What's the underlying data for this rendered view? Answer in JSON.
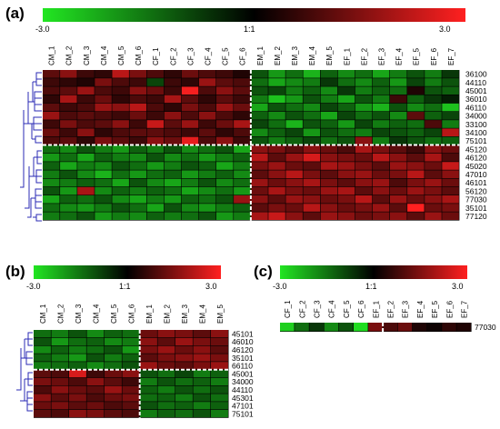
{
  "panels": [
    {
      "label": "(a)"
    },
    {
      "label": "(b)"
    },
    {
      "label": "(c)"
    }
  ],
  "color_scale": {
    "min_label": "-3.0",
    "mid_label": "1:1",
    "max_label": "3.0",
    "low_color": "#22e622",
    "mid_color": "#000000",
    "high_color": "#ff2020"
  },
  "chart_data": [
    {
      "type": "heatmap",
      "panel": "(a)",
      "value_range": [
        -3.0,
        3.0
      ],
      "columns": [
        "CM_1",
        "CM_2",
        "CM_3",
        "CM_4",
        "CM_5",
        "CM_6",
        "CF_1",
        "CF_2",
        "CF_3",
        "CF_4",
        "CF_5",
        "CF_6",
        "EM_1",
        "EM_2",
        "EM_3",
        "EM_4",
        "EM_5",
        "EF_1",
        "EF_2",
        "EF_3",
        "EF_4",
        "EF_5",
        "EF_6",
        "EF_7"
      ],
      "rows": [
        "36100",
        "44110",
        "45001",
        "36010",
        "46110",
        "34000",
        "33100",
        "34100",
        "75101",
        "45120",
        "46120",
        "45020",
        "47010",
        "46101",
        "56120",
        "77030",
        "35101",
        "77120"
      ],
      "values": [
        [
          0.6,
          0.9,
          0.4,
          0.3,
          1.2,
          0.8,
          0.5,
          0.3,
          0.7,
          0.5,
          0.4,
          0.2,
          -0.6,
          -1.1,
          -0.8,
          -1.3,
          -0.7,
          -1.0,
          -0.8,
          -1.2,
          -0.9,
          -0.6,
          -0.9,
          -0.4
        ],
        [
          0.4,
          0.3,
          0.2,
          0.8,
          0.5,
          0.4,
          -0.5,
          0.4,
          0.3,
          1.0,
          0.6,
          0.5,
          -0.8,
          -1.2,
          -1.0,
          -0.9,
          -0.4,
          -0.8,
          -1.0,
          -0.7,
          -1.1,
          -0.5,
          -0.9,
          -0.6
        ],
        [
          0.5,
          0.6,
          1.0,
          0.5,
          0.4,
          0.9,
          0.7,
          0.4,
          1.6,
          0.5,
          0.9,
          0.6,
          -0.6,
          -0.5,
          -0.9,
          -0.7,
          -1.0,
          -0.4,
          -0.9,
          -0.7,
          -0.8,
          0.2,
          -0.6,
          -0.7
        ],
        [
          0.3,
          1.1,
          0.4,
          0.7,
          0.3,
          0.5,
          0.4,
          1.1,
          0.6,
          0.3,
          0.6,
          0.4,
          -0.9,
          -1.4,
          -1.1,
          -0.6,
          -0.9,
          -1.2,
          -0.6,
          -0.9,
          0.4,
          -0.7,
          -0.4,
          -0.2
        ],
        [
          0.6,
          0.4,
          0.5,
          1.0,
          0.9,
          1.2,
          0.5,
          0.3,
          0.8,
          0.5,
          1.0,
          0.7,
          -1.2,
          -0.6,
          -0.8,
          -1.0,
          -0.5,
          -0.7,
          -1.1,
          -1.3,
          -0.6,
          -1.0,
          -0.8,
          -1.4
        ],
        [
          1.0,
          0.5,
          0.6,
          0.5,
          0.4,
          0.7,
          0.4,
          0.9,
          0.5,
          0.9,
          0.5,
          0.3,
          -0.7,
          -1.0,
          -0.6,
          -0.8,
          -1.2,
          -0.5,
          -0.8,
          -0.6,
          -1.0,
          0.6,
          -0.7,
          -0.5
        ],
        [
          0.4,
          0.8,
          0.5,
          0.6,
          0.9,
          0.4,
          1.3,
          0.6,
          1.0,
          0.4,
          0.7,
          1.1,
          -0.5,
          -0.8,
          -1.3,
          -0.6,
          -0.7,
          -1.1,
          -0.5,
          -0.9,
          -0.7,
          -0.8,
          0.5,
          -0.9
        ],
        [
          0.7,
          0.4,
          0.9,
          0.3,
          0.5,
          0.6,
          0.6,
          0.5,
          0.4,
          0.6,
          0.3,
          0.5,
          -1.0,
          -0.7,
          -0.5,
          -1.1,
          -0.6,
          -0.8,
          -0.9,
          -0.5,
          -0.6,
          -0.7,
          -0.5,
          1.2
        ],
        [
          0.5,
          0.6,
          0.3,
          0.8,
          0.6,
          0.4,
          0.9,
          0.7,
          1.5,
          0.5,
          0.9,
          0.4,
          -0.6,
          -0.9,
          -0.7,
          -0.5,
          -0.8,
          -0.6,
          0.9,
          -0.9,
          -0.4,
          -0.6,
          -0.8,
          -0.7
        ],
        [
          -0.8,
          -1.0,
          -0.6,
          -0.9,
          -1.1,
          -0.7,
          -0.9,
          -0.6,
          -1.0,
          -0.8,
          -0.6,
          -1.2,
          0.9,
          0.8,
          0.6,
          0.9,
          0.7,
          0.5,
          1.1,
          0.8,
          0.6,
          0.4,
          0.9,
          0.7
        ],
        [
          -1.1,
          -0.8,
          -1.2,
          -0.7,
          -0.9,
          -1.0,
          -0.6,
          -1.0,
          -0.8,
          -1.1,
          -0.9,
          -0.7,
          1.2,
          0.6,
          1.0,
          1.4,
          0.9,
          0.8,
          0.7,
          1.2,
          0.9,
          0.6,
          1.1,
          0.5
        ],
        [
          -0.7,
          -1.2,
          -0.9,
          -1.0,
          -0.6,
          -0.8,
          -1.1,
          -0.9,
          -0.6,
          -0.7,
          -1.2,
          -0.9,
          0.8,
          1.0,
          0.7,
          0.6,
          1.1,
          1.0,
          0.8,
          0.6,
          1.0,
          0.9,
          0.7,
          1.3
        ],
        [
          -0.9,
          -0.6,
          -1.0,
          -1.3,
          -0.8,
          -1.1,
          -0.8,
          -0.7,
          -1.1,
          -0.9,
          -0.7,
          -1.0,
          0.6,
          0.9,
          1.2,
          0.8,
          0.6,
          0.9,
          1.0,
          0.7,
          0.8,
          1.2,
          0.6,
          0.9
        ],
        [
          -1.0,
          -0.9,
          -0.7,
          -0.8,
          -1.2,
          -0.6,
          -1.0,
          -1.2,
          -0.9,
          -0.6,
          -1.0,
          -0.8,
          1.0,
          0.7,
          0.9,
          1.1,
          0.8,
          0.6,
          0.9,
          1.0,
          0.5,
          0.8,
          1.0,
          0.7
        ],
        [
          -0.6,
          -1.1,
          1.1,
          -1.0,
          -0.7,
          -0.9,
          -0.7,
          -0.8,
          -1.2,
          -1.0,
          -0.8,
          -1.1,
          0.7,
          1.1,
          0.8,
          0.7,
          1.0,
          1.1,
          0.6,
          0.9,
          0.7,
          1.0,
          0.8,
          0.6
        ],
        [
          -1.2,
          -0.7,
          -0.8,
          -0.6,
          -1.0,
          -1.2,
          -0.9,
          -1.1,
          -0.7,
          -0.8,
          -0.6,
          1.0,
          0.9,
          0.6,
          1.0,
          0.9,
          0.7,
          0.8,
          1.2,
          0.6,
          1.0,
          0.7,
          0.9,
          1.1
        ],
        [
          -0.8,
          -1.0,
          -1.1,
          -0.9,
          -0.6,
          -0.8,
          -1.2,
          -0.6,
          -1.0,
          -1.1,
          -0.9,
          -0.7,
          0.6,
          0.8,
          0.7,
          1.2,
          0.9,
          0.7,
          0.8,
          1.0,
          0.6,
          1.7,
          0.7,
          0.8
        ],
        [
          -0.9,
          -0.8,
          -0.6,
          -1.1,
          -0.9,
          -1.0,
          -0.7,
          -0.9,
          -0.8,
          -0.6,
          -1.1,
          -0.9,
          1.1,
          1.3,
          0.9,
          0.6,
          1.0,
          0.9,
          0.7,
          0.8,
          0.9,
          0.6,
          1.0,
          0.7
        ]
      ]
    },
    {
      "type": "heatmap",
      "panel": "(b)",
      "value_range": [
        -3.0,
        3.0
      ],
      "columns": [
        "CM_1",
        "CM_2",
        "CM_3",
        "CM_4",
        "CM_5",
        "CM_6",
        "EM_1",
        "EM_2",
        "EM_3",
        "EM_4",
        "EM_5"
      ],
      "rows": [
        "45101",
        "46010",
        "46120",
        "35101",
        "66110",
        "45001",
        "34000",
        "44110",
        "45301",
        "47101",
        "75101"
      ],
      "values": [
        [
          -0.8,
          -0.9,
          -0.6,
          -1.0,
          -0.7,
          -0.8,
          0.7,
          0.9,
          0.8,
          0.6,
          0.9
        ],
        [
          -0.6,
          -1.1,
          -0.8,
          -0.7,
          -1.0,
          -0.9,
          0.9,
          0.6,
          1.0,
          0.8,
          0.7
        ],
        [
          -1.0,
          -0.7,
          -0.9,
          -0.8,
          -0.6,
          -1.1,
          0.8,
          1.0,
          0.7,
          0.9,
          0.6
        ],
        [
          -0.7,
          -0.9,
          -1.1,
          -0.6,
          -0.9,
          -0.7,
          0.6,
          0.8,
          0.9,
          1.0,
          0.8
        ],
        [
          -0.9,
          -0.8,
          -0.7,
          -1.0,
          -0.8,
          -0.6,
          1.0,
          0.7,
          0.6,
          0.8,
          1.0
        ],
        [
          0.6,
          0.5,
          1.4,
          0.4,
          0.7,
          0.9,
          -0.6,
          -0.8,
          -0.5,
          -0.9,
          -0.7
        ],
        [
          0.8,
          0.7,
          0.5,
          0.9,
          0.6,
          0.4,
          -0.9,
          -0.6,
          -0.8,
          -0.7,
          -0.9
        ],
        [
          0.5,
          0.9,
          0.7,
          0.6,
          1.0,
          0.7,
          -0.7,
          -0.9,
          -0.6,
          -0.8,
          -0.6
        ],
        [
          0.9,
          0.6,
          0.8,
          0.5,
          0.7,
          0.8,
          -0.8,
          -0.7,
          -0.9,
          -0.6,
          -0.8
        ],
        [
          0.7,
          0.8,
          0.6,
          0.7,
          0.5,
          0.6,
          -0.6,
          -0.8,
          -0.7,
          -0.9,
          -0.7
        ],
        [
          0.6,
          0.5,
          0.9,
          0.8,
          0.6,
          0.5,
          -0.9,
          -0.7,
          -0.8,
          -0.6,
          -0.9
        ]
      ]
    },
    {
      "type": "heatmap",
      "panel": "(c)",
      "value_range": [
        -3.0,
        3.0
      ],
      "columns": [
        "CF_1",
        "CF_2",
        "CF_3",
        "CF_4",
        "CF_5",
        "CF_6",
        "EF_1",
        "EF_2",
        "EF_3",
        "EF_4",
        "EF_5",
        "EF_6",
        "EF_7"
      ],
      "rows": [
        "77030"
      ],
      "values": [
        [
          -1.5,
          -0.8,
          -0.4,
          -1.0,
          -0.6,
          -1.6,
          0.8,
          0.5,
          0.7,
          0.2,
          0.1,
          0.3,
          0.2
        ]
      ]
    }
  ]
}
